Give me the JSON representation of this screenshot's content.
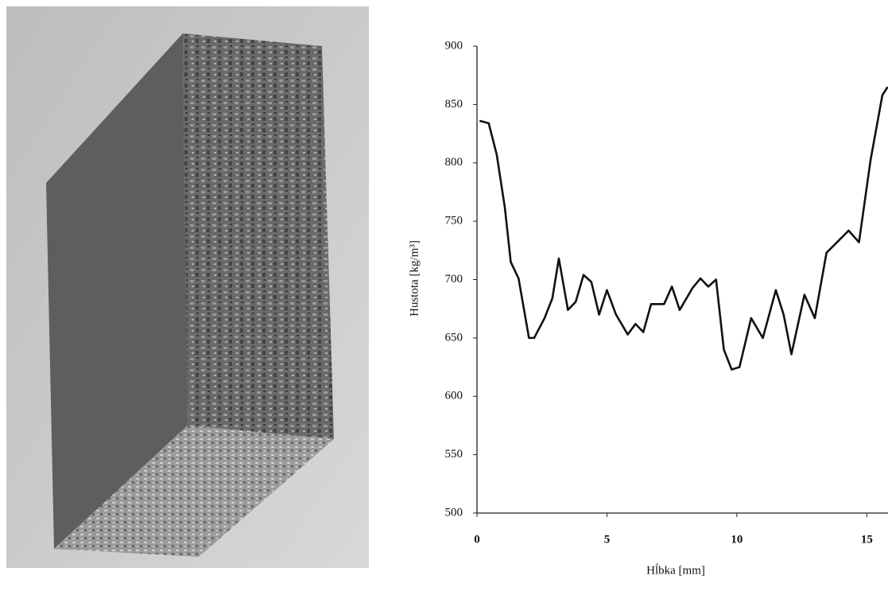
{
  "chart_data": {
    "type": "line",
    "x_label": "Hĺbka [mm]",
    "y_label": "Hustota [kg/m³]",
    "x": [
      0.1,
      0.45,
      0.76,
      1.07,
      1.3,
      1.6,
      2.0,
      2.2,
      2.6,
      2.9,
      3.15,
      3.5,
      3.8,
      4.1,
      4.4,
      4.7,
      5.0,
      5.35,
      5.8,
      6.1,
      6.4,
      6.7,
      7.2,
      7.5,
      7.8,
      8.3,
      8.6,
      8.9,
      9.2,
      9.5,
      9.8,
      10.1,
      10.55,
      11.0,
      11.5,
      11.8,
      12.1,
      12.6,
      13.0,
      13.45,
      13.9,
      14.3,
      14.7,
      15.15,
      15.6,
      15.8
    ],
    "series": [
      {
        "color": "#111111",
        "values": [
          836,
          834,
          807,
          762,
          715,
          701,
          650,
          650,
          667,
          684,
          718,
          674,
          681,
          704,
          698,
          670,
          691,
          670,
          653,
          662,
          655,
          679,
          679,
          694,
          674,
          693,
          701,
          694,
          700,
          640,
          623,
          625,
          667,
          650,
          691,
          670,
          636,
          687,
          667,
          723,
          733,
          742,
          732,
          803,
          858,
          865
        ]
      }
    ],
    "xlim": [
      0,
      16
    ],
    "xticks": [
      0,
      5,
      10,
      15
    ],
    "ylim": [
      500,
      900
    ],
    "yticks": [
      500,
      550,
      600,
      650,
      700,
      750,
      800,
      850,
      900
    ]
  }
}
